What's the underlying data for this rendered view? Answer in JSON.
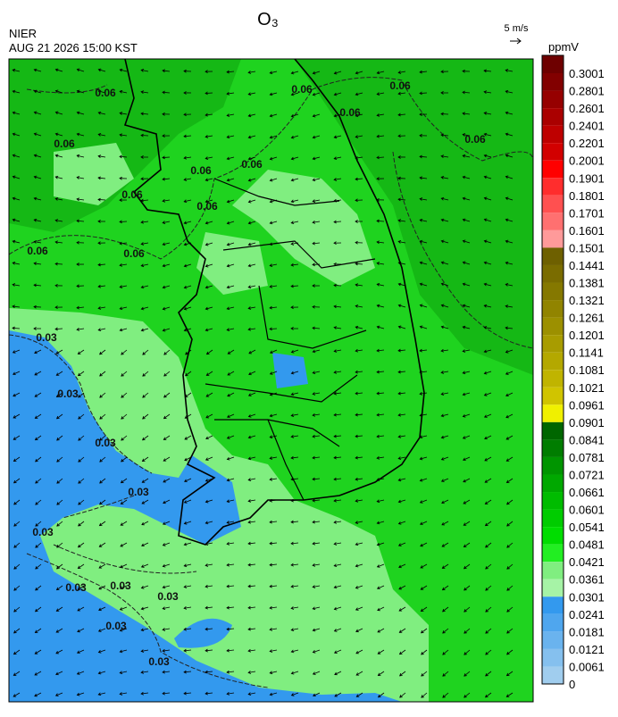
{
  "header": {
    "title": "O₃",
    "agency": "NIER",
    "datetime": "AUG 21 2026 15:00 KST",
    "wind_scale": "5 m/s",
    "unit": "ppmV"
  },
  "colorbar": {
    "levels": [
      0.3001,
      0.2801,
      0.2601,
      0.2401,
      0.2201,
      0.2001,
      0.1901,
      0.1801,
      0.1701,
      0.1601,
      0.1501,
      0.1441,
      0.1381,
      0.1321,
      0.1261,
      0.1201,
      0.1141,
      0.1081,
      0.1021,
      0.0961,
      0.0901,
      0.0841,
      0.0781,
      0.0721,
      0.0661,
      0.0601,
      0.0541,
      0.0481,
      0.0421,
      0.0361,
      0.0301,
      0.0241,
      0.0181,
      0.0121,
      0.0061,
      0
    ],
    "colors": [
      "#6e0000",
      "#820000",
      "#960000",
      "#aa0000",
      "#be0000",
      "#d20000",
      "#ff0000",
      "#ff2d2d",
      "#ff5050",
      "#ff7070",
      "#ff9a9a",
      "#6e6000",
      "#7a6c00",
      "#857800",
      "#918400",
      "#9c9000",
      "#a89c00",
      "#b4a800",
      "#c0b400",
      "#d0c400",
      "#f0f000",
      "#006600",
      "#007d00",
      "#009500",
      "#00a800",
      "#00bc00",
      "#00cc00",
      "#00dd00",
      "#22ee22",
      "#80ee80",
      "#a6f3a6",
      "#3399ee",
      "#4fa6ee",
      "#6ab3ee",
      "#85c0ee",
      "#a0cdee"
    ]
  },
  "contour_labels": [
    0.06,
    0.06,
    0.06,
    0.06,
    0.06,
    0.06,
    0.06,
    0.06,
    0.06,
    0.06,
    0.06,
    0.06,
    0.03,
    0.03,
    0.03,
    0.03,
    0.03,
    0.03,
    0.03,
    0.03,
    0.03,
    0.03
  ]
}
